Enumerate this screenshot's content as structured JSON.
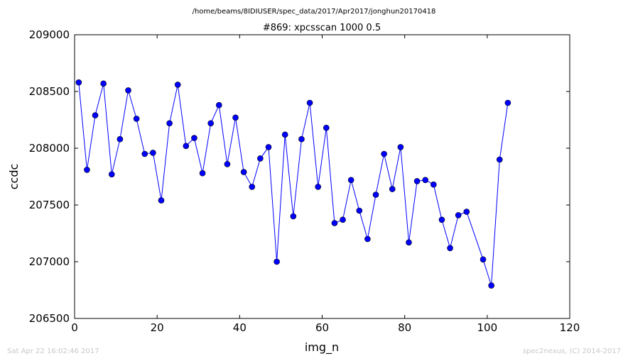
{
  "suptitle": "/home/beams/8IDIUSER/spec_data/2017/Apr2017/jonghun20170418",
  "footer_left": "Sat Apr 22 16:02:46 2017",
  "footer_right": "spec2nexus, (C) 2014-2017",
  "colors": {
    "series": "#0000ff",
    "marker": "#0000ff",
    "axes": "#000000",
    "footer": "#c8c8c8"
  },
  "chart_data": {
    "type": "line",
    "title": "#869: xpcsscan 1000 0.5",
    "xlabel": "img_n",
    "ylabel": "ccdc",
    "xlim": [
      0,
      120
    ],
    "ylim": [
      206500,
      209000
    ],
    "xticks": [
      0,
      20,
      40,
      60,
      80,
      100,
      120
    ],
    "xtick_labels": [
      "0",
      "20",
      "40",
      "60",
      "80",
      "100",
      "120"
    ],
    "yticks": [
      206500,
      207000,
      207500,
      208000,
      208500,
      209000
    ],
    "ytick_labels": [
      "206500",
      "207000",
      "207500",
      "208000",
      "208500",
      "209000"
    ],
    "grid": false,
    "legend": "none",
    "series": [
      {
        "marker": "circle",
        "x": [
          1,
          3,
          5,
          7,
          9,
          11,
          13,
          15,
          17,
          19,
          21,
          23,
          25,
          27,
          29,
          31,
          33,
          35,
          37,
          39,
          41,
          43,
          45,
          47,
          49,
          51,
          53,
          55,
          57,
          59,
          61,
          63,
          65,
          67,
          69,
          71,
          73,
          75,
          77,
          79,
          81,
          83,
          85,
          87,
          89,
          91,
          93,
          95,
          99,
          101,
          103,
          105
        ],
        "y": [
          208580,
          207810,
          208290,
          208570,
          207770,
          208080,
          208510,
          208260,
          207950,
          207960,
          207540,
          208220,
          208560,
          208020,
          208090,
          207780,
          208220,
          208380,
          207860,
          208270,
          207790,
          207660,
          207910,
          208010,
          207000,
          208120,
          207400,
          208080,
          208400,
          207660,
          208180,
          207340,
          207370,
          207720,
          207450,
          207200,
          207590,
          207950,
          207640,
          208010,
          207170,
          207710,
          207720,
          207680,
          207370,
          207120,
          207410,
          207440,
          207020,
          206790,
          207900,
          208400
        ]
      }
    ]
  }
}
